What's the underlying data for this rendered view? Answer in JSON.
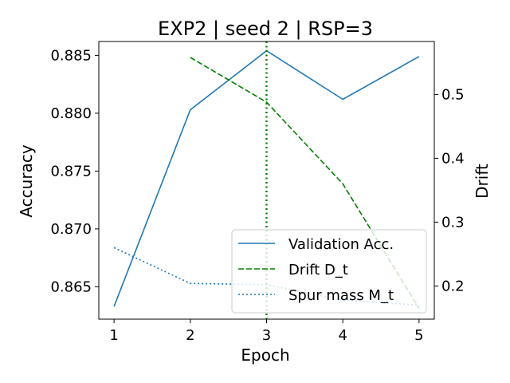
{
  "chart_data": {
    "type": "line",
    "title": "EXP2 | seed 2 | RSP=3",
    "xlabel": "Epoch",
    "ylabel_left": "Accuracy",
    "ylabel_right": "Drift",
    "x": [
      1,
      2,
      3,
      4,
      5
    ],
    "xticks": [
      "1",
      "2",
      "3",
      "4",
      "5"
    ],
    "xlim": [
      0.8,
      5.2
    ],
    "ylim_left": [
      0.8622,
      0.8862
    ],
    "ylim_right": [
      0.148,
      0.583
    ],
    "yticks_left": [
      "0.865",
      "0.870",
      "0.875",
      "0.880",
      "0.885"
    ],
    "yticks_right": [
      "0.2",
      "0.3",
      "0.4",
      "0.5"
    ],
    "series": [
      {
        "name": "Validation Acc.",
        "axis": "left",
        "style": "solid",
        "color": "#1f77b4",
        "x": [
          1,
          2,
          3,
          4,
          5
        ],
        "values": [
          0.8633,
          0.8803,
          0.8854,
          0.8812,
          0.8849
        ]
      },
      {
        "name": "Drift D_t",
        "axis": "right",
        "style": "dashed",
        "color": "#008000",
        "x": [
          2,
          3,
          4,
          5
        ],
        "values": [
          0.558,
          0.488,
          0.36,
          0.165
        ]
      },
      {
        "name": "Spur mass M_t",
        "axis": "right",
        "style": "dotted",
        "color": "#1f77b4",
        "x": [
          1,
          2,
          3,
          4,
          5
        ],
        "values": [
          0.26,
          0.204,
          0.202,
          0.178,
          0.17
        ]
      }
    ],
    "vline": {
      "x": 3,
      "color": "#008000",
      "style": "dotted"
    },
    "legend": {
      "placement": "lower-right",
      "entries": [
        "Validation Acc.",
        "Drift D_t",
        "Spur mass M_t"
      ]
    }
  }
}
